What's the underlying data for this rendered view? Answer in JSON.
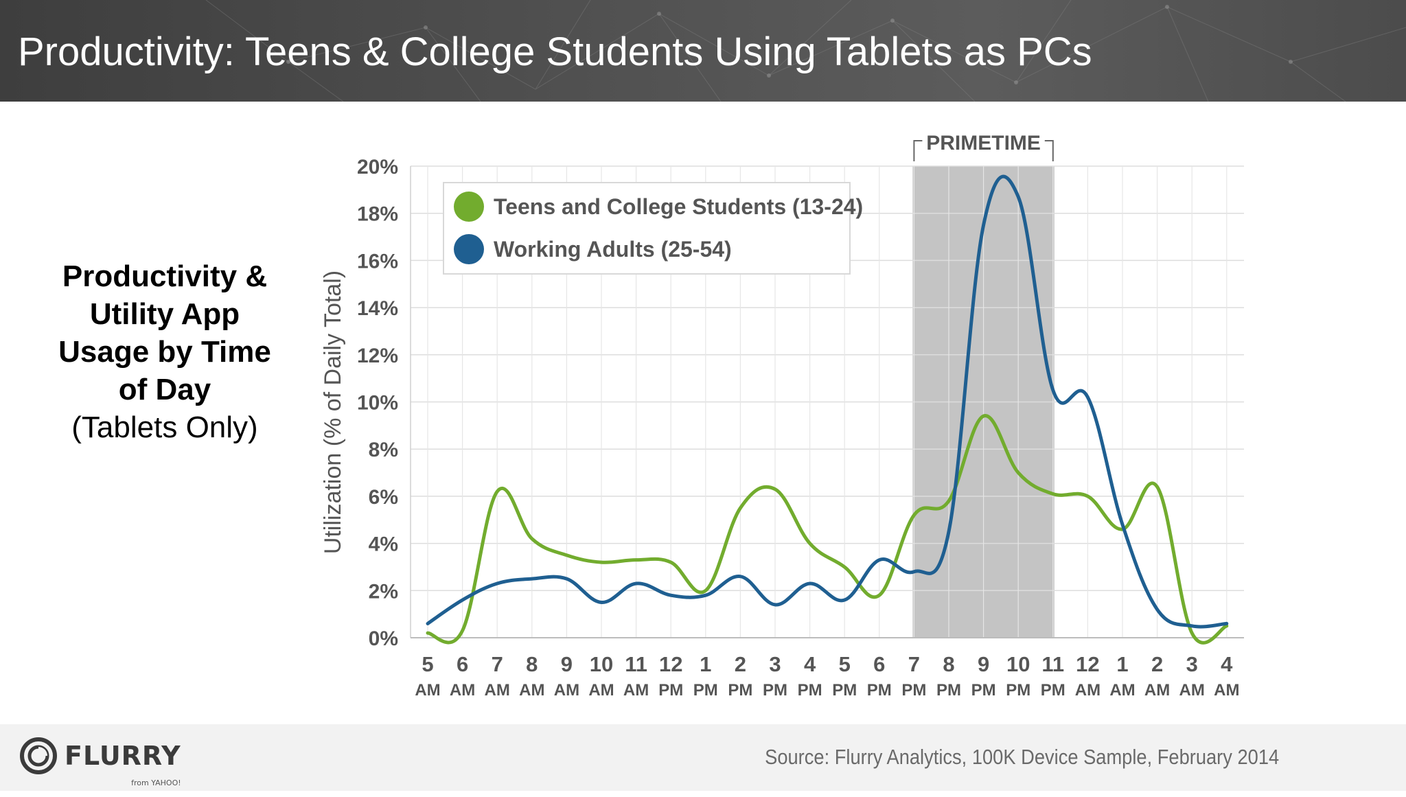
{
  "header": {
    "title": "Productivity: Teens & College Students Using Tablets as PCs"
  },
  "caption": {
    "lines_bold": [
      "Productivity &",
      "Utility App",
      "Usage by Time",
      "of Day"
    ],
    "subtitle": "(Tablets Only)"
  },
  "chart_data": {
    "type": "line",
    "ylabel": "Utilization (% of Daily Total)",
    "xlabel": "",
    "ylim": [
      0,
      20
    ],
    "yticks": [
      "0%",
      "2%",
      "4%",
      "6%",
      "8%",
      "10%",
      "12%",
      "14%",
      "16%",
      "18%",
      "20%"
    ],
    "categories": [
      {
        "hour": "5",
        "period": "AM"
      },
      {
        "hour": "6",
        "period": "AM"
      },
      {
        "hour": "7",
        "period": "AM"
      },
      {
        "hour": "8",
        "period": "AM"
      },
      {
        "hour": "9",
        "period": "AM"
      },
      {
        "hour": "10",
        "period": "AM"
      },
      {
        "hour": "11",
        "period": "AM"
      },
      {
        "hour": "12",
        "period": "PM"
      },
      {
        "hour": "1",
        "period": "PM"
      },
      {
        "hour": "2",
        "period": "PM"
      },
      {
        "hour": "3",
        "period": "PM"
      },
      {
        "hour": "4",
        "period": "PM"
      },
      {
        "hour": "5",
        "period": "PM"
      },
      {
        "hour": "6",
        "period": "PM"
      },
      {
        "hour": "7",
        "period": "PM"
      },
      {
        "hour": "8",
        "period": "PM"
      },
      {
        "hour": "9",
        "period": "PM"
      },
      {
        "hour": "10",
        "period": "PM"
      },
      {
        "hour": "11",
        "period": "PM"
      },
      {
        "hour": "12",
        "period": "AM"
      },
      {
        "hour": "1",
        "period": "AM"
      },
      {
        "hour": "2",
        "period": "AM"
      },
      {
        "hour": "3",
        "period": "AM"
      },
      {
        "hour": "4",
        "period": "AM"
      }
    ],
    "series": [
      {
        "name": "Teens and College Students (13-24)",
        "color": "#72ac2e",
        "values": [
          0.2,
          0.3,
          6.2,
          4.2,
          3.5,
          3.2,
          3.3,
          3.2,
          2.0,
          5.5,
          6.3,
          4.0,
          3.0,
          1.8,
          5.2,
          5.8,
          9.4,
          7.0,
          6.1,
          6.0,
          4.6,
          6.4,
          0.2,
          0.5
        ]
      },
      {
        "name": "Working Adults (25-54)",
        "color": "#1f5f91",
        "values": [
          0.6,
          1.6,
          2.3,
          2.5,
          2.5,
          1.5,
          2.3,
          1.8,
          1.8,
          2.6,
          1.4,
          2.3,
          1.6,
          3.3,
          2.8,
          4.5,
          17.5,
          18.7,
          10.5,
          10.2,
          4.8,
          1.2,
          0.5,
          0.6
        ]
      }
    ],
    "highlight": {
      "label": "PRIMETIME",
      "from": "7 PM",
      "to": "11 PM",
      "color": "#c4c4c4"
    },
    "legend_position": "top-left",
    "grid": true
  },
  "footer": {
    "logo": {
      "name": "FLURRY",
      "sub": "from YAHOO!"
    },
    "source": "Source: Flurry Analytics, 100K Device Sample, February 2014"
  }
}
